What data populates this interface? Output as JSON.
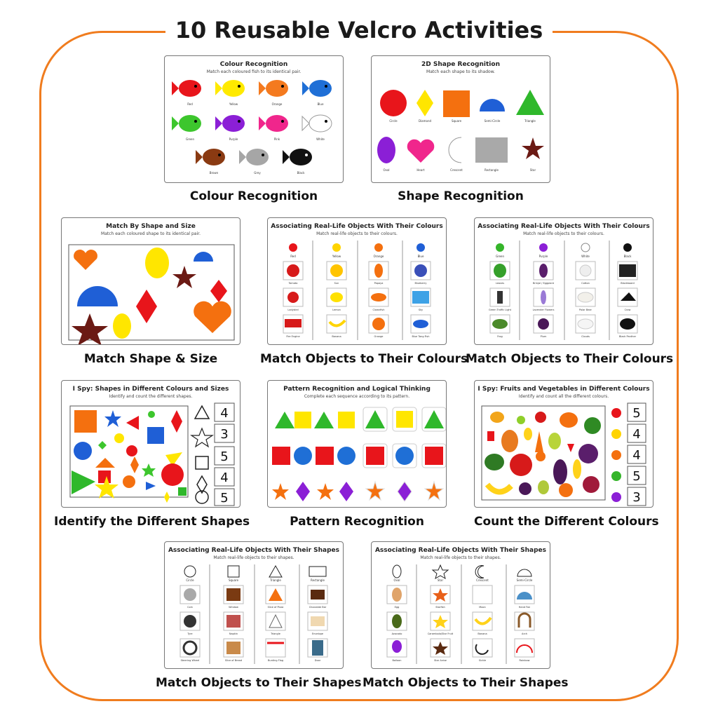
{
  "header": {
    "title": "10 Reusable Velcro Activities"
  },
  "colors": {
    "border": "#f07c1e"
  },
  "activities": [
    {
      "card_title": "Colour Recognition",
      "card_sub": "Match each coloured fish to its identical pair.",
      "caption": "Colour Recognition",
      "items": [
        "Red",
        "Yellow",
        "Orange",
        "Blue",
        "Green",
        "Purple",
        "Pink",
        "White",
        "Brown",
        "Grey",
        "Black"
      ]
    },
    {
      "card_title": "2D Shape Recognition",
      "card_sub": "Match each shape to its shadow.",
      "caption": "Shape Recognition",
      "items": [
        "Circle",
        "Diamond",
        "Square",
        "Semi-Circle",
        "Triangle",
        "Oval",
        "Heart",
        "Crescent",
        "Rectangle",
        "Star"
      ]
    },
    {
      "card_title": "Match By Shape and Size",
      "card_sub": "Match each coloured shape to its identical pair.",
      "caption": "Match Shape & Size"
    },
    {
      "card_title": "Associating Real-Life Objects With Their Colours",
      "card_sub": "Match real-life objects to their colours.",
      "caption": "Match Objects to Their Colours",
      "columns": [
        "Red",
        "Yellow",
        "Orange",
        "Blue"
      ],
      "items": [
        "Tomato",
        "Sun",
        "Papaya",
        "Blueberry",
        "Ladybird",
        "Lemon",
        "Clownfish",
        "Sky",
        "Fire Engine",
        "Banana",
        "Orange",
        "Blue Tang Fish"
      ]
    },
    {
      "card_title": "Associating Real-Life Objects With Their Colours",
      "card_sub": "Match real-life objects to their colours.",
      "caption": "Match Objects to Their Colours",
      "columns": [
        "Green",
        "Purple",
        "White",
        "Black"
      ],
      "items": [
        "Leaves",
        "Brinjal / Eggplant",
        "Cotton",
        "Blackboard",
        "Green Traffic Light",
        "Lavender Flowers",
        "Polar Bear",
        "Crow",
        "Frog",
        "Plum",
        "Clouds",
        "Black Panther"
      ]
    },
    {
      "card_title": "I Spy: Shapes in Different Colours and Sizes",
      "card_sub": "Identify and count the different shapes.",
      "caption": "Identify the Different Shapes",
      "counts": [
        "4",
        "3",
        "5",
        "4",
        "5"
      ]
    },
    {
      "card_title": "Pattern Recognition and Logical Thinking",
      "card_sub": "Complete each sequence according to its pattern.",
      "caption": "Pattern Recognition"
    },
    {
      "card_title": "I Spy: Fruits and Vegetables in Different Colours",
      "card_sub": "Identify and count all the different colours.",
      "caption": "Count the Different Colours",
      "counts": [
        "5",
        "4",
        "4",
        "5",
        "3"
      ]
    },
    {
      "card_title": "Associating Real-Life Objects With Their Shapes",
      "card_sub": "Match real-life objects to their shapes.",
      "caption": "Match Objects to Their Shapes",
      "columns": [
        "Circle",
        "Square",
        "Triangle",
        "Rectangle"
      ],
      "items": [
        "Coin",
        "Window",
        "Slice of Pizza",
        "Chocolate Bar",
        "Tyre",
        "Napkin",
        "Triangle",
        "Envelope",
        "Steering Wheel",
        "Slice of Bread",
        "Bunting Flag",
        "Door"
      ]
    },
    {
      "card_title": "Associating Real-Life Objects With Their Shapes",
      "card_sub": "Match real-life objects to their shapes.",
      "caption": "Match Objects to Their Shapes",
      "columns": [
        "Oval",
        "Star",
        "Crescent",
        "Semi-Circle"
      ],
      "items": [
        "Egg",
        "Starfish",
        "Moon",
        "Hand Fan",
        "Avocado",
        "Carambola/Star Fruit",
        "Banana",
        "Arch",
        "Balloon",
        "Star Anise",
        "Sickle",
        "Rainbow"
      ]
    }
  ]
}
